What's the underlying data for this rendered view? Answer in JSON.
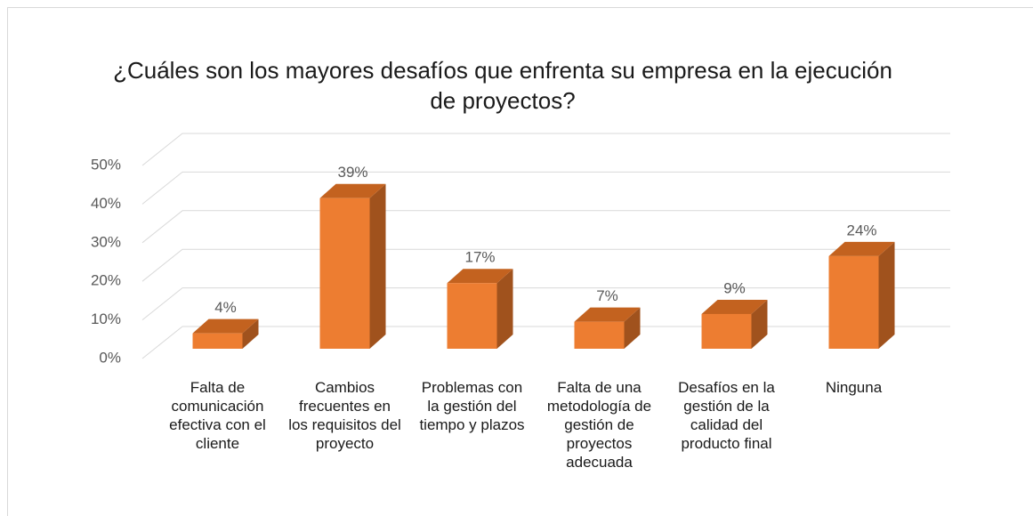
{
  "chart_data": {
    "type": "bar3d",
    "title": "¿Cuáles son los mayores desafíos que enfrenta su empresa en la ejecución de proyectos?",
    "categories": [
      "Falta de comunicación efectiva con el cliente",
      "Cambios frecuentes en los requisitos del proyecto",
      "Problemas con la gestión del tiempo y plazos",
      "Falta de una metodología de gestión de proyectos adecuada",
      "Desafíos en la gestión de la calidad del producto final",
      "Ninguna"
    ],
    "values": [
      4,
      39,
      17,
      7,
      9,
      24
    ],
    "value_labels": [
      "4%",
      "39%",
      "17%",
      "7%",
      "9%",
      "24%"
    ],
    "color": "#ed7d31",
    "ylim": [
      0,
      50
    ],
    "yticks": [
      {
        "value": 0,
        "label": "0%"
      },
      {
        "value": 10,
        "label": "10%"
      },
      {
        "value": 20,
        "label": "20%"
      },
      {
        "value": 30,
        "label": "30%"
      },
      {
        "value": 40,
        "label": "40%"
      },
      {
        "value": 50,
        "label": "50%"
      }
    ],
    "grid": true
  }
}
